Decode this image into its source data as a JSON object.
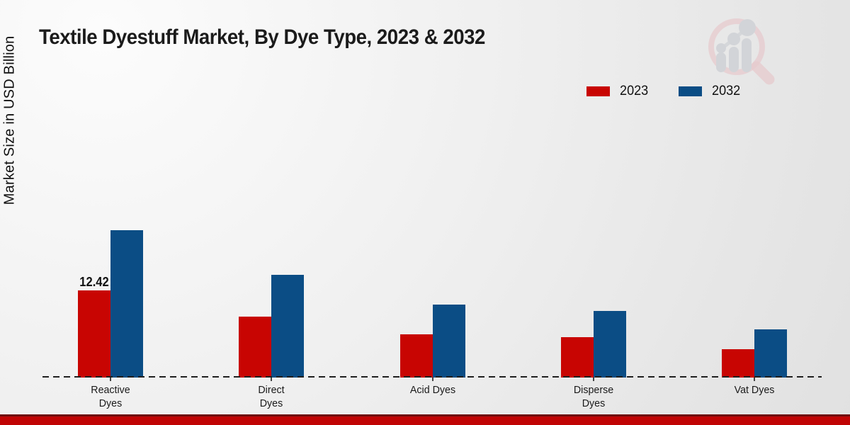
{
  "header": {
    "title": "Textile Dyestuff Market, By Dye Type, 2023 & 2032"
  },
  "axis": {
    "y_label": "Market Size in USD Billion"
  },
  "legend": {
    "position": "top-right",
    "items": [
      {
        "label": "2023",
        "color": "#c80502"
      },
      {
        "label": "2032",
        "color": "#0b4d85"
      }
    ]
  },
  "chart_data": {
    "type": "bar",
    "title": "Textile Dyestuff Market, By Dye Type, 2023 & 2032",
    "xlabel": "",
    "ylabel": "Market Size in USD Billion",
    "categories": [
      "Reactive Dyes",
      "Direct Dyes",
      "Acid Dyes",
      "Disperse Dyes",
      "Vat Dyes"
    ],
    "category_label_lines": [
      [
        "Reactive",
        "Dyes"
      ],
      [
        "Direct",
        "Dyes"
      ],
      [
        "Acid Dyes"
      ],
      [
        "Disperse",
        "Dyes"
      ],
      [
        "Vat Dyes"
      ]
    ],
    "series": [
      {
        "name": "2023",
        "color": "#c80502",
        "values": [
          12.42,
          8.7,
          6.2,
          5.8,
          4.0
        ]
      },
      {
        "name": "2032",
        "color": "#0b4d85",
        "values": [
          21.0,
          14.6,
          10.4,
          9.5,
          6.9
        ]
      }
    ],
    "shown_value_label": {
      "text": "12.42",
      "series_index": 0,
      "category_index": 0
    },
    "ylim": [
      0,
      22
    ],
    "grid": false,
    "legend_position": "top-right",
    "baseline_style": "dashed",
    "units": "USD Billion"
  },
  "branding": {
    "logo_name": "magnifier-bar-chart-watermark",
    "logo_ring_color": "#e7c6c9",
    "logo_bars_color": "#cfd1d6"
  },
  "footer": {
    "accent_color": "#c00404"
  }
}
